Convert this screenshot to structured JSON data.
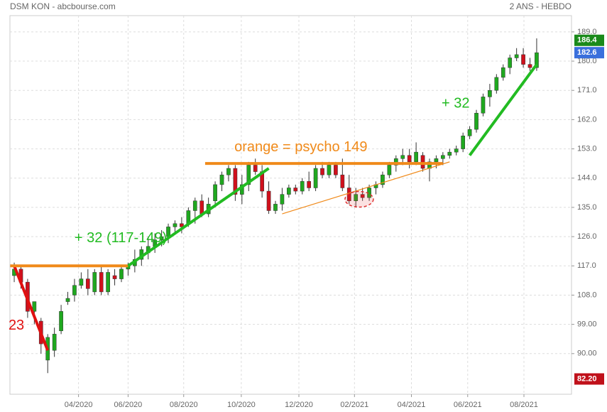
{
  "chart_data": {
    "type": "candlestick",
    "title": "DSM KON - abcbourse.com",
    "subtitle": "2 ANS - HEBDO",
    "up_color": "#1fa81f",
    "down_color": "#d0101c",
    "candles": [
      [
        114,
        118,
        112,
        116
      ],
      [
        116,
        117,
        110,
        112
      ],
      [
        112,
        113,
        101,
        103
      ],
      [
        103,
        106,
        99,
        106
      ],
      [
        100,
        101,
        90,
        93
      ],
      [
        88,
        96,
        84,
        95
      ],
      [
        91,
        98,
        89,
        96
      ],
      [
        97,
        105,
        96,
        103
      ],
      [
        106,
        109,
        105,
        107
      ],
      [
        108,
        113,
        106,
        111
      ],
      [
        111,
        115,
        110,
        113
      ],
      [
        113,
        116,
        108,
        110
      ],
      [
        109,
        116,
        108,
        115
      ],
      [
        115,
        117,
        108,
        109
      ],
      [
        109,
        116,
        108,
        115
      ],
      [
        114,
        116,
        111,
        113
      ],
      [
        113,
        117,
        112,
        116
      ],
      [
        116,
        118,
        114,
        117
      ],
      [
        117,
        122,
        115,
        119
      ],
      [
        119,
        123,
        117,
        122
      ],
      [
        121,
        126,
        119,
        123
      ],
      [
        123,
        127,
        121,
        125
      ],
      [
        125,
        128,
        123,
        126
      ],
      [
        126,
        130,
        124,
        129
      ],
      [
        129,
        131,
        127,
        130
      ],
      [
        130,
        132,
        127,
        129
      ],
      [
        130,
        135,
        129,
        134
      ],
      [
        134,
        138,
        130,
        137
      ],
      [
        137,
        139,
        132,
        133
      ],
      [
        133,
        138,
        132,
        136
      ],
      [
        137,
        143,
        135,
        142
      ],
      [
        142,
        146,
        140,
        145
      ],
      [
        145,
        148,
        143,
        147
      ],
      [
        147,
        148,
        137,
        139
      ],
      [
        139,
        145,
        136,
        142
      ],
      [
        142,
        149,
        140,
        148
      ],
      [
        148,
        150,
        145,
        146
      ],
      [
        146,
        148,
        138,
        140
      ],
      [
        140,
        143,
        133,
        134
      ],
      [
        134,
        137,
        133,
        136
      ],
      [
        136,
        141,
        134,
        139
      ],
      [
        139,
        142,
        138,
        141
      ],
      [
        141,
        142,
        139,
        140
      ],
      [
        140,
        144,
        139,
        143
      ],
      [
        143,
        146,
        140,
        141
      ],
      [
        141,
        148,
        140,
        147
      ],
      [
        147,
        149,
        144,
        145
      ],
      [
        145,
        149,
        144,
        148
      ],
      [
        148,
        149,
        144,
        145
      ],
      [
        145,
        150,
        140,
        141
      ],
      [
        141,
        145,
        136,
        137
      ],
      [
        137,
        141,
        135,
        139
      ],
      [
        139,
        141,
        137,
        138
      ],
      [
        138,
        142,
        137,
        141
      ],
      [
        141,
        143,
        139,
        142
      ],
      [
        142,
        146,
        141,
        145
      ],
      [
        145,
        149,
        144,
        148
      ],
      [
        148,
        151,
        146,
        150
      ],
      [
        150,
        153,
        148,
        151
      ],
      [
        151,
        153,
        147,
        149
      ],
      [
        149,
        155,
        148,
        152
      ],
      [
        151,
        152,
        146,
        147
      ],
      [
        147,
        150,
        143,
        149
      ],
      [
        149,
        151,
        147,
        150
      ],
      [
        150,
        152,
        148,
        151
      ],
      [
        151,
        153,
        150,
        152
      ],
      [
        152,
        154,
        151,
        153
      ],
      [
        153,
        158,
        152,
        157
      ],
      [
        157,
        160,
        156,
        159
      ],
      [
        159,
        165,
        158,
        164
      ],
      [
        164,
        170,
        163,
        169
      ],
      [
        169,
        173,
        166,
        171
      ],
      [
        171,
        176,
        170,
        175
      ],
      [
        175,
        179,
        174,
        178
      ],
      [
        178,
        182,
        176,
        181
      ],
      [
        181,
        184,
        180,
        182
      ],
      [
        182,
        184,
        178,
        179
      ],
      [
        179,
        181,
        177,
        178
      ],
      [
        178,
        187,
        177,
        182.6
      ]
    ],
    "xlim": [
      -0.64,
      83.2
    ],
    "xticks": [
      {
        "value": 9.6,
        "label": "04/2020"
      },
      {
        "value": 17.0,
        "label": "06/2020"
      },
      {
        "value": 25.3,
        "label": "08/2020"
      },
      {
        "value": 33.9,
        "label": "10/2020"
      },
      {
        "value": 42.5,
        "label": "12/2020"
      },
      {
        "value": 50.8,
        "label": "02/2021"
      },
      {
        "value": 59.3,
        "label": "04/2021"
      },
      {
        "value": 67.7,
        "label": "06/2021"
      },
      {
        "value": 76.1,
        "label": "08/2021"
      }
    ],
    "ylim": [
      77.5,
      194
    ],
    "yticks": [
      {
        "value": 90,
        "label": "90.00"
      },
      {
        "value": 99,
        "label": "99.00"
      },
      {
        "value": 108,
        "label": "108.0"
      },
      {
        "value": 117,
        "label": "117.0"
      },
      {
        "value": 126,
        "label": "126.0"
      },
      {
        "value": 135,
        "label": "135.0"
      },
      {
        "value": 144,
        "label": "144.0"
      },
      {
        "value": 153,
        "label": "153.0"
      },
      {
        "value": 162,
        "label": "162.0"
      },
      {
        "value": 171,
        "label": "171.0"
      },
      {
        "value": 180,
        "label": "180.0"
      },
      {
        "value": 189,
        "label": "189.0"
      }
    ],
    "grid": true,
    "price_tags": {
      "values": [
        186.4,
        182.6,
        82.2
      ],
      "value_labels": [
        "186.4",
        "182.6",
        "82.20"
      ],
      "colors": [
        "#1a8a1a",
        "#3a6fdc",
        "#c0101a"
      ]
    },
    "drawings": [
      {
        "color": "#e01010",
        "width": 4,
        "x": [
          0,
          5
        ],
        "y": [
          117,
          91
        ]
      },
      {
        "color": "#f08a1a",
        "width": 4,
        "x": [
          -0.6,
          17
        ],
        "y": [
          117,
          117
        ]
      },
      {
        "color": "#22bb22",
        "width": 4,
        "x": [
          17,
          38
        ],
        "y": [
          117,
          147
        ]
      },
      {
        "color": "#f08a1a",
        "width": 4,
        "x": [
          28.5,
          64
        ],
        "y": [
          148.5,
          148.5
        ]
      },
      {
        "color": "#f08a1a",
        "width": 1.2,
        "x": [
          40,
          65
        ],
        "y": [
          133,
          149
        ]
      },
      {
        "color": "#22bb22",
        "width": 4,
        "x": [
          68,
          78
        ],
        "y": [
          151,
          179
        ]
      }
    ],
    "annotations": [
      {
        "text": "orange = psycho 149",
        "x": 42.8,
        "y": 153.4,
        "color": "#f08a1a",
        "anchor": "middle"
      },
      {
        "text": "+ 32 (117-149)",
        "x": 15.9,
        "y": 125.4,
        "color": "#22bb22",
        "anchor": "middle"
      },
      {
        "text": "+ 32",
        "x": 65.9,
        "y": 166.9,
        "color": "#22bb22",
        "anchor": "middle"
      },
      {
        "text": "23",
        "x": 1.5,
        "y": 98.5,
        "color": "#e01010",
        "anchor": "end"
      }
    ]
  }
}
